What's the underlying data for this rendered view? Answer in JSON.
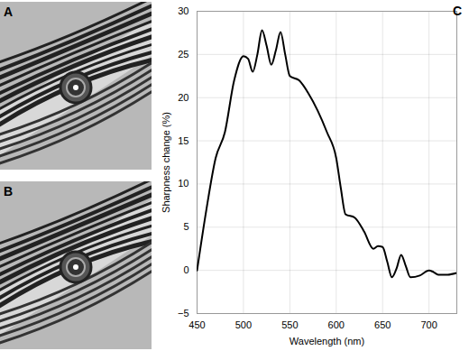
{
  "panel_labels": [
    "A",
    "B"
  ],
  "chart_data": {
    "type": "line",
    "title": "C",
    "x_label": "Wavelength (nm)",
    "y_label": "Sharpness change (%)",
    "x": [
      450,
      460,
      470,
      480,
      490,
      500,
      505,
      510,
      515,
      520,
      525,
      530,
      535,
      540,
      545,
      550,
      560,
      570,
      580,
      590,
      600,
      605,
      610,
      620,
      630,
      640,
      645,
      650,
      655,
      660,
      665,
      670,
      675,
      680,
      690,
      700,
      705,
      710,
      720,
      730
    ],
    "values": [
      0,
      7,
      13,
      16,
      22,
      24.8,
      24.5,
      23,
      25,
      27.8,
      26,
      23.8,
      25.5,
      27.6,
      25,
      22.5,
      22,
      20.5,
      18.5,
      16,
      13,
      9.5,
      6.5,
      6.1,
      4.5,
      2.5,
      2.8,
      2.7,
      1,
      -0.8,
      0.2,
      1.8,
      0.5,
      -0.8,
      -0.6,
      0,
      -0.2,
      -0.5,
      -0.5,
      -0.3
    ],
    "color": "#000000",
    "xlim": [
      450,
      730
    ],
    "xticks": [
      450,
      500,
      550,
      600,
      650,
      700
    ],
    "ylim": [
      -5,
      30
    ],
    "yticks": [
      -5,
      0,
      5,
      10,
      15,
      20,
      25,
      30
    ],
    "grid": true
  }
}
